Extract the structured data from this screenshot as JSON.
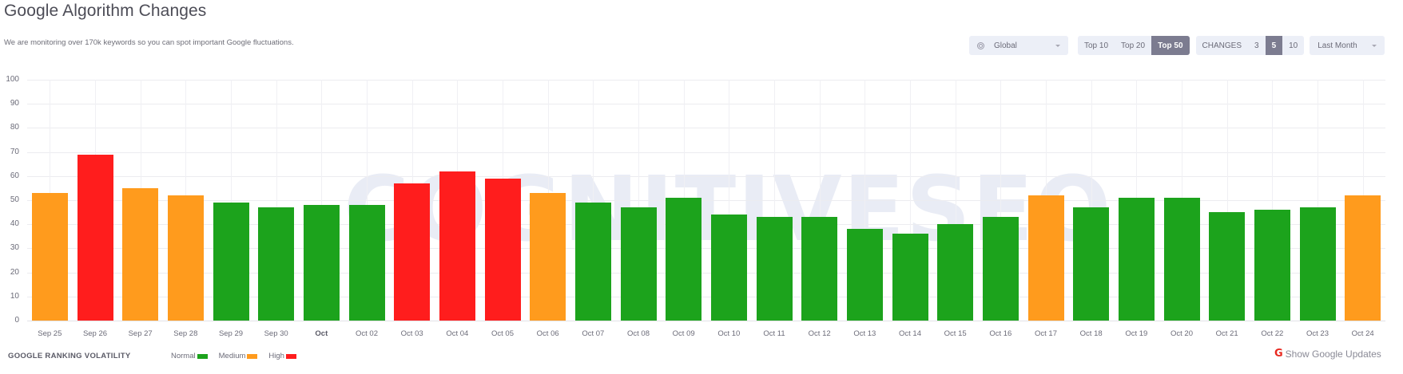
{
  "header": {
    "title": "Google Algorithm Changes",
    "subtitle": "We are monitoring over 170k keywords so you can spot important Google fluctuations."
  },
  "controls": {
    "region": {
      "icon": "globe-icon",
      "value": "Global"
    },
    "top_filter": {
      "options": [
        "Top 10",
        "Top 20",
        "Top 50"
      ],
      "selected": "Top 50"
    },
    "changes": {
      "label": "CHANGES",
      "options": [
        "3",
        "5",
        "10"
      ],
      "selected": "5"
    },
    "period": {
      "value": "Last Month"
    }
  },
  "legend": {
    "title": "GOOGLE RANKING VOLATILITY",
    "items": [
      {
        "label": "Normal",
        "color": "#1ca31c"
      },
      {
        "label": "Medium",
        "color": "#ff9b1d"
      },
      {
        "label": "High",
        "color": "#ff1d1d"
      }
    ]
  },
  "footer": {
    "google_updates_label": "Show Google Updates",
    "google_icon": "G"
  },
  "watermark": "COGNITIVESEO",
  "colors": {
    "normal": "#1ca31c",
    "medium": "#ff9b1d",
    "high": "#ff1d1d"
  },
  "chart_data": {
    "type": "bar",
    "title": "Google Algorithm Changes",
    "xlabel": "",
    "ylabel": "",
    "ylim": [
      0,
      100
    ],
    "yticks": [
      100,
      90,
      80,
      70,
      60,
      50,
      40,
      30,
      20,
      10,
      0
    ],
    "grid": true,
    "legend_position": "bottom-left",
    "categories": [
      "Sep 25",
      "Sep 26",
      "Sep 27",
      "Sep 28",
      "Sep 29",
      "Sep 30",
      "Oct",
      "Oct 02",
      "Oct 03",
      "Oct 04",
      "Oct 05",
      "Oct 06",
      "Oct 07",
      "Oct 08",
      "Oct 09",
      "Oct 10",
      "Oct 11",
      "Oct 12",
      "Oct 13",
      "Oct 14",
      "Oct 15",
      "Oct 16",
      "Oct 17",
      "Oct 18",
      "Oct 19",
      "Oct 20",
      "Oct 21",
      "Oct 22",
      "Oct 23",
      "Oct 24"
    ],
    "values": [
      53,
      69,
      55,
      52,
      49,
      47,
      48,
      48,
      57,
      62,
      59,
      53,
      49,
      47,
      51,
      44,
      43,
      43,
      38,
      36,
      40,
      43,
      52,
      47,
      51,
      51,
      45,
      46,
      47,
      52
    ],
    "levels": [
      "medium",
      "high",
      "medium",
      "medium",
      "normal",
      "normal",
      "normal",
      "normal",
      "high",
      "high",
      "high",
      "medium",
      "normal",
      "normal",
      "normal",
      "normal",
      "normal",
      "normal",
      "normal",
      "normal",
      "normal",
      "normal",
      "medium",
      "normal",
      "normal",
      "normal",
      "normal",
      "normal",
      "normal",
      "medium"
    ],
    "bold_labels": [
      "Oct"
    ]
  }
}
